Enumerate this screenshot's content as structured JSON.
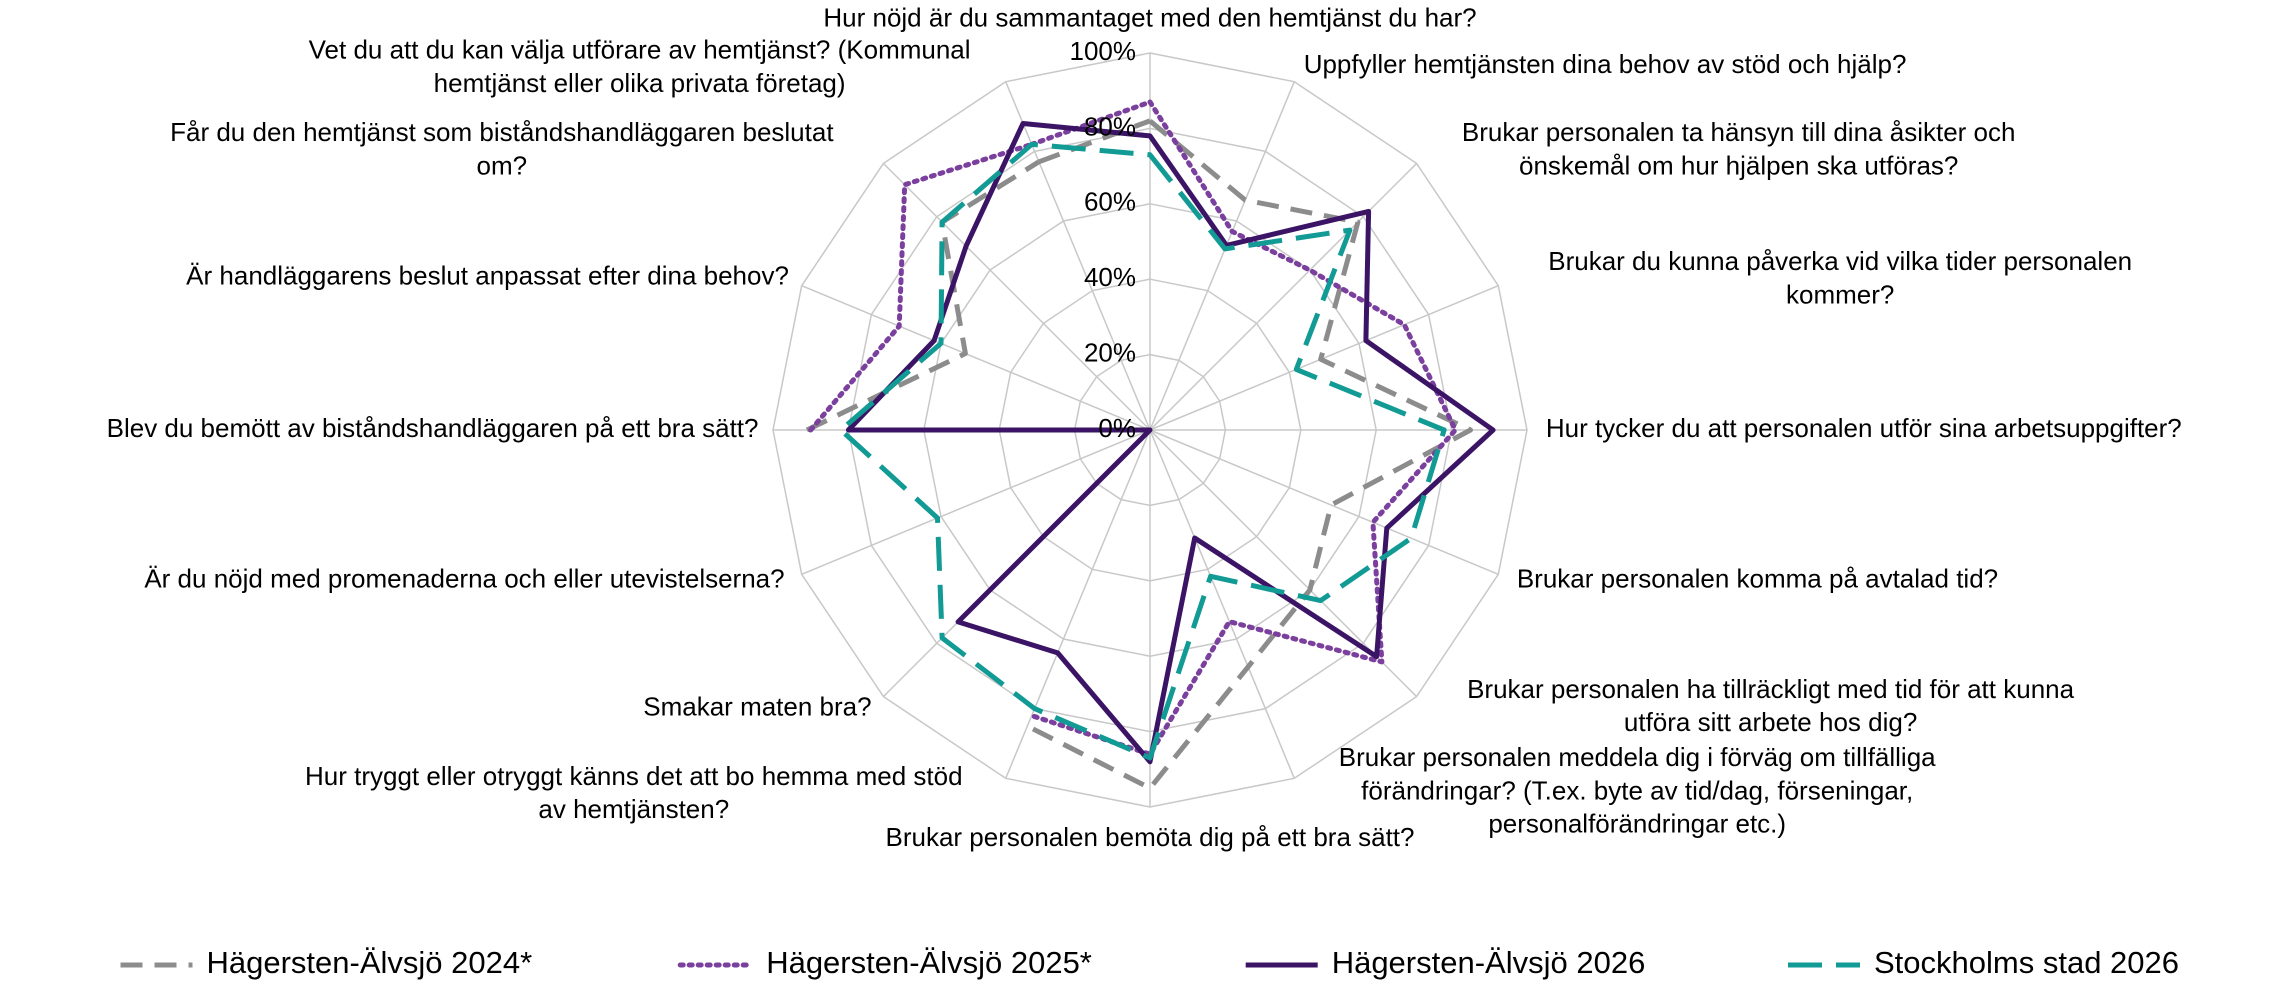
{
  "chart_data": {
    "type": "radar",
    "categories": [
      [
        "Hur nöjd är du sammantaget med den hemtjänst du har?"
      ],
      [
        "Uppfyller hemtjänsten dina behov av stöd och hjälp?"
      ],
      [
        "Brukar personalen ta hänsyn till dina åsikter och",
        "önskemål om hur hjälpen ska utföras?"
      ],
      [
        "Brukar du kunna påverka vid vilka tider personalen",
        "kommer?"
      ],
      [
        "Hur tycker du att personalen utför sina  arbetsuppgifter?"
      ],
      [
        "Brukar personalen komma på avtalad tid?"
      ],
      [
        "Brukar personalen ha tillräckligt med tid för att kunna",
        "utföra sitt arbete hos dig?"
      ],
      [
        "Brukar personalen meddela dig i förväg om tillfälliga",
        "förändringar? (T.ex. byte av tid/dag, förseningar,",
        "personalförändringar etc.)"
      ],
      [
        "Brukar personalen bemöta dig på ett bra sätt?"
      ],
      [
        "Hur tryggt eller otryggt känns det att bo hemma med stöd",
        "av hemtjänsten?"
      ],
      [
        "Smakar maten bra?"
      ],
      [
        "Är du nöjd med promenaderna och eller utevistelserna?"
      ],
      [
        "Blev du bemött av biståndshandläggaren på ett bra sätt?"
      ],
      [
        "Är handläggarens beslut anpassat efter dina behov?"
      ],
      [
        "Får du den hemtjänst som biståndshandläggaren beslutat",
        "om?"
      ],
      [
        "Vet du att du kan välja utförare av hemtjänst? (Kommunal",
        "hemtjänst eller olika privata företag)"
      ]
    ],
    "series": [
      {
        "name": "Hägersten-Älvsjö 2024*",
        "color": "#8c8c8c",
        "dash": "dashed",
        "values": [
          82,
          66,
          78,
          49,
          85,
          52,
          60,
          68,
          95,
          85,
          null,
          null,
          91,
          53,
          78,
          77
        ]
      },
      {
        "name": "Hägersten-Älvsjö 2025*",
        "color": "#7b3f9e",
        "dash": "dotted",
        "values": [
          87,
          57,
          60,
          73,
          81,
          64,
          87,
          55,
          86,
          82,
          null,
          null,
          90,
          72,
          92,
          82
        ]
      },
      {
        "name": "Hägersten-Älvsjö 2026",
        "color": "#3b1466",
        "dash": "solid",
        "values": [
          78,
          53,
          82,
          62,
          91,
          68,
          85,
          31,
          88,
          64,
          72,
          0,
          80,
          62,
          69,
          88
        ]
      },
      {
        "name": "Stockholms stad 2026",
        "color": "#129a95",
        "dash": "longdash",
        "values": [
          73,
          52,
          75,
          42,
          78,
          75,
          64,
          42,
          87,
          80,
          78,
          61,
          82,
          60,
          78,
          82
        ]
      }
    ],
    "ylim": [
      0,
      100
    ],
    "yticks": [
      {
        "value": 0,
        "label": "0%"
      },
      {
        "value": 20,
        "label": "20%"
      },
      {
        "value": 40,
        "label": "40%"
      },
      {
        "value": 60,
        "label": "60%"
      },
      {
        "value": 80,
        "label": "80%"
      },
      {
        "value": 100,
        "label": "100%"
      }
    ],
    "grid": true,
    "legend": "bottom"
  }
}
